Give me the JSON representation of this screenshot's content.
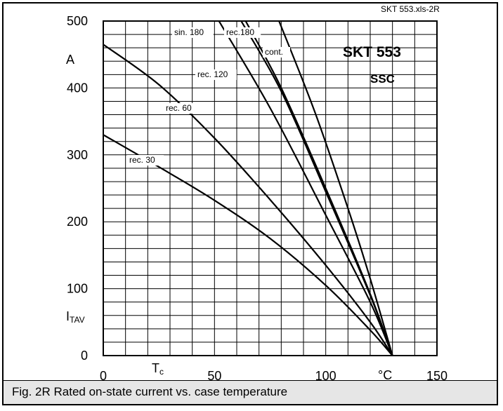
{
  "figure_id": "SKT 553.xls-2R",
  "device_name": "SKT 553",
  "device_variant": "SSC",
  "caption": "Fig. 2R Rated on-state current vs. case temperature",
  "chart_data": {
    "type": "line",
    "title": "",
    "xlabel_symbol": "T",
    "xlabel_subscript": "c",
    "xunit": "°C",
    "ylabel_unit": "A",
    "ylabel_symbol": "I",
    "ylabel_subscript": "TAV",
    "xlim": [
      0,
      150
    ],
    "ylim": [
      0,
      500
    ],
    "xticks": [
      "0",
      "50",
      "100",
      "150"
    ],
    "yticks": [
      "0",
      "100",
      "200",
      "300",
      "400",
      "500"
    ],
    "grid": true,
    "series": [
      {
        "name": "rec. 30",
        "x": [
          0,
          25,
          50,
          75,
          100,
          120,
          130
        ],
        "y": [
          330,
          282,
          232,
          175,
          105,
          38,
          0
        ]
      },
      {
        "name": "rec. 60",
        "x": [
          0,
          25,
          50,
          75,
          100,
          120,
          130
        ],
        "y": [
          465,
          405,
          325,
          233,
          135,
          50,
          0
        ]
      },
      {
        "name": "rec. 120",
        "x": [
          52,
          75,
          100,
          120,
          130
        ],
        "y": [
          500,
          370,
          210,
          80,
          0
        ]
      },
      {
        "name": "sin. 180",
        "x": [
          62,
          80,
          100,
          120,
          130
        ],
        "y": [
          500,
          395,
          245,
          90,
          0
        ]
      },
      {
        "name": "rec.180",
        "x": [
          64,
          80,
          100,
          120,
          130
        ],
        "y": [
          500,
          400,
          250,
          92,
          0
        ]
      },
      {
        "name": "cont.",
        "x": [
          79,
          95,
          110,
          120,
          130
        ],
        "y": [
          500,
          365,
          220,
          115,
          0
        ]
      }
    ]
  }
}
